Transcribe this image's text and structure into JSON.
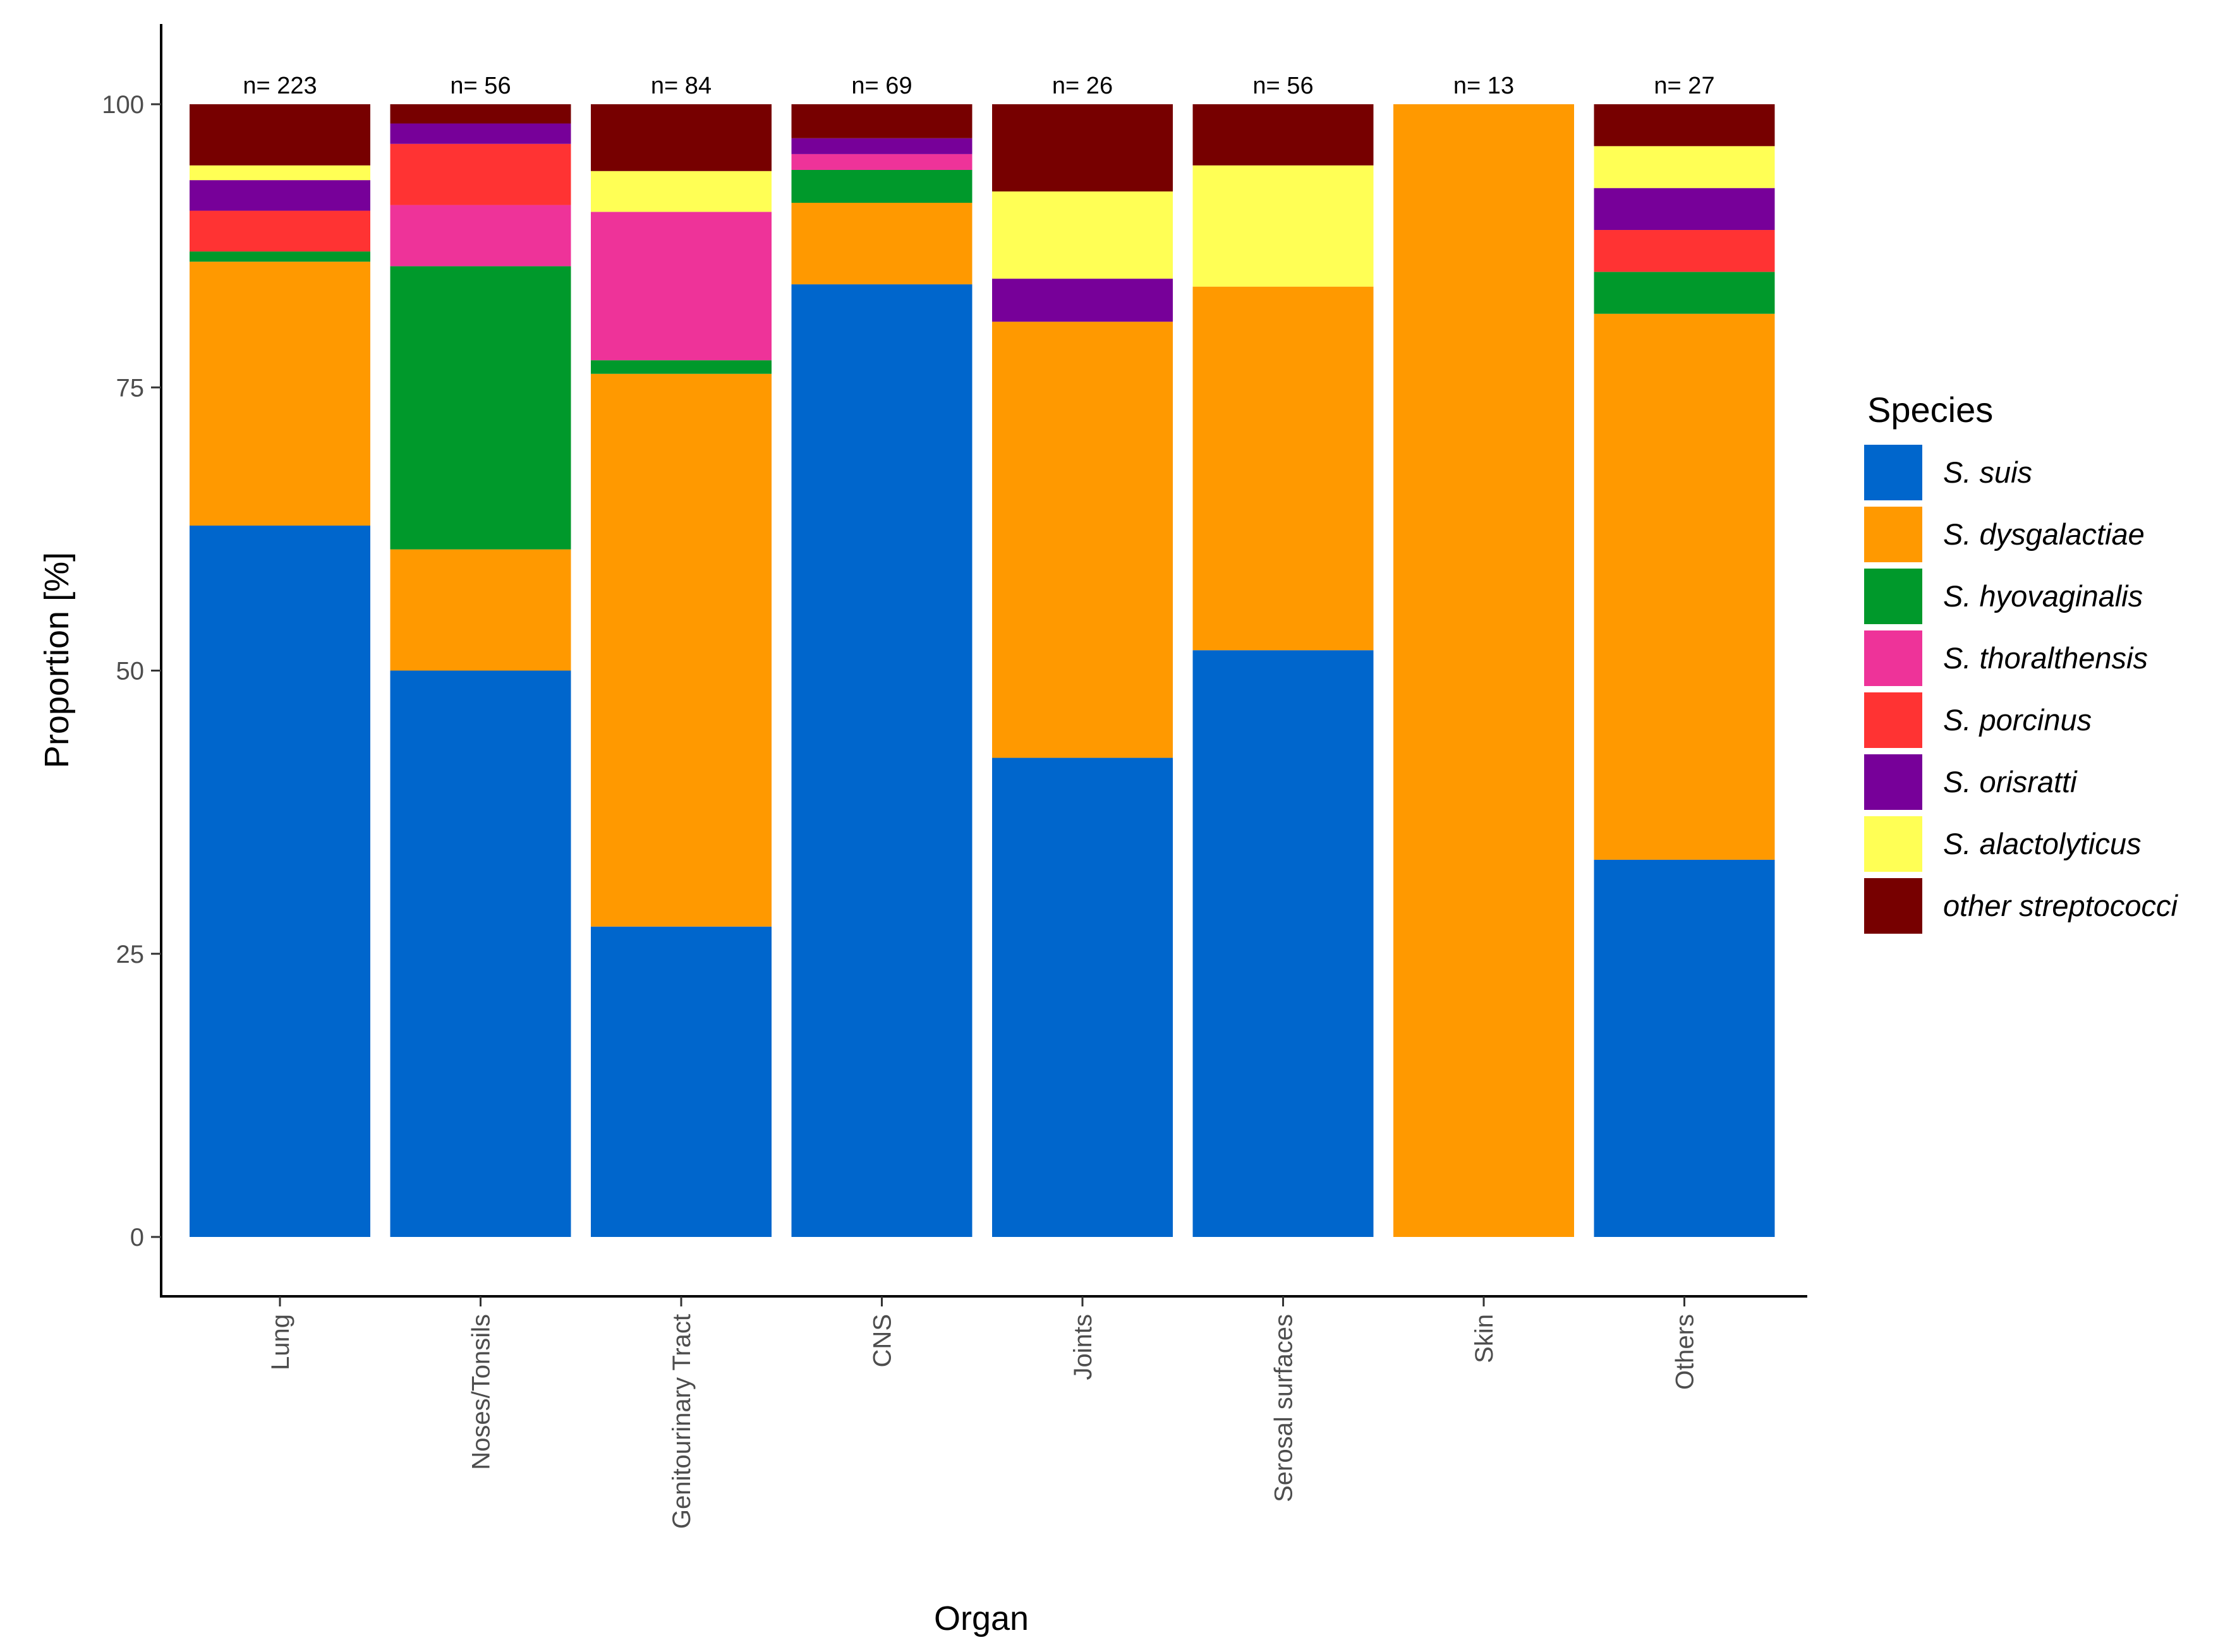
{
  "chart_data": {
    "type": "bar",
    "stacked": true,
    "xlabel": "Organ",
    "ylabel": "Proportion [%]",
    "ylim": [
      0,
      100
    ],
    "yticks": [
      "0",
      "25",
      "50",
      "75",
      "100"
    ],
    "categories": [
      "Lung",
      "Noses/Tonsils",
      "Genitourinary Tract",
      "CNS",
      "Joints",
      "Serosal surfaces",
      "Skin",
      "Others"
    ],
    "counts": [
      "n= 223",
      "n= 56",
      "n= 84",
      "n= 69",
      "n= 26",
      "n= 56",
      "n= 13",
      "n= 27"
    ],
    "legend_title": "Species",
    "legend_position": "right",
    "grid": false,
    "series": [
      {
        "name": "S. suis",
        "color": "#0066CC",
        "values": [
          62.8,
          50.0,
          27.4,
          84.1,
          42.3,
          51.8,
          0.0,
          33.3
        ]
      },
      {
        "name": " S. dysgalactiae",
        "color": "#FF9900",
        "values": [
          23.3,
          10.7,
          48.8,
          7.2,
          38.5,
          32.1,
          100.0,
          48.2
        ]
      },
      {
        "name": "S. hyovaginalis",
        "color": "#00992B",
        "values": [
          0.9,
          25.0,
          1.2,
          2.9,
          0.0,
          0.0,
          0.0,
          3.7
        ]
      },
      {
        "name": "S. thoralthensis",
        "color": "#EE3399",
        "values": [
          0.0,
          5.4,
          13.1,
          1.4,
          0.0,
          0.0,
          0.0,
          0.0
        ]
      },
      {
        "name": "S. porcinus",
        "color": "#FF3333",
        "values": [
          3.6,
          5.4,
          0.0,
          0.0,
          0.0,
          0.0,
          0.0,
          3.7
        ]
      },
      {
        "name": "S. orisratti",
        "color": "#770099",
        "values": [
          2.7,
          1.8,
          0.0,
          1.4,
          3.8,
          0.0,
          0.0,
          3.7
        ]
      },
      {
        "name": "S. alactolyticus",
        "color": "#FFFF55",
        "values": [
          1.3,
          0.0,
          3.6,
          0.0,
          7.7,
          10.7,
          0.0,
          3.7
        ]
      },
      {
        "name": "other streptococci",
        "color": "#770000",
        "values": [
          5.4,
          1.7,
          5.9,
          3.0,
          7.7,
          5.4,
          0.0,
          3.7
        ]
      }
    ]
  }
}
